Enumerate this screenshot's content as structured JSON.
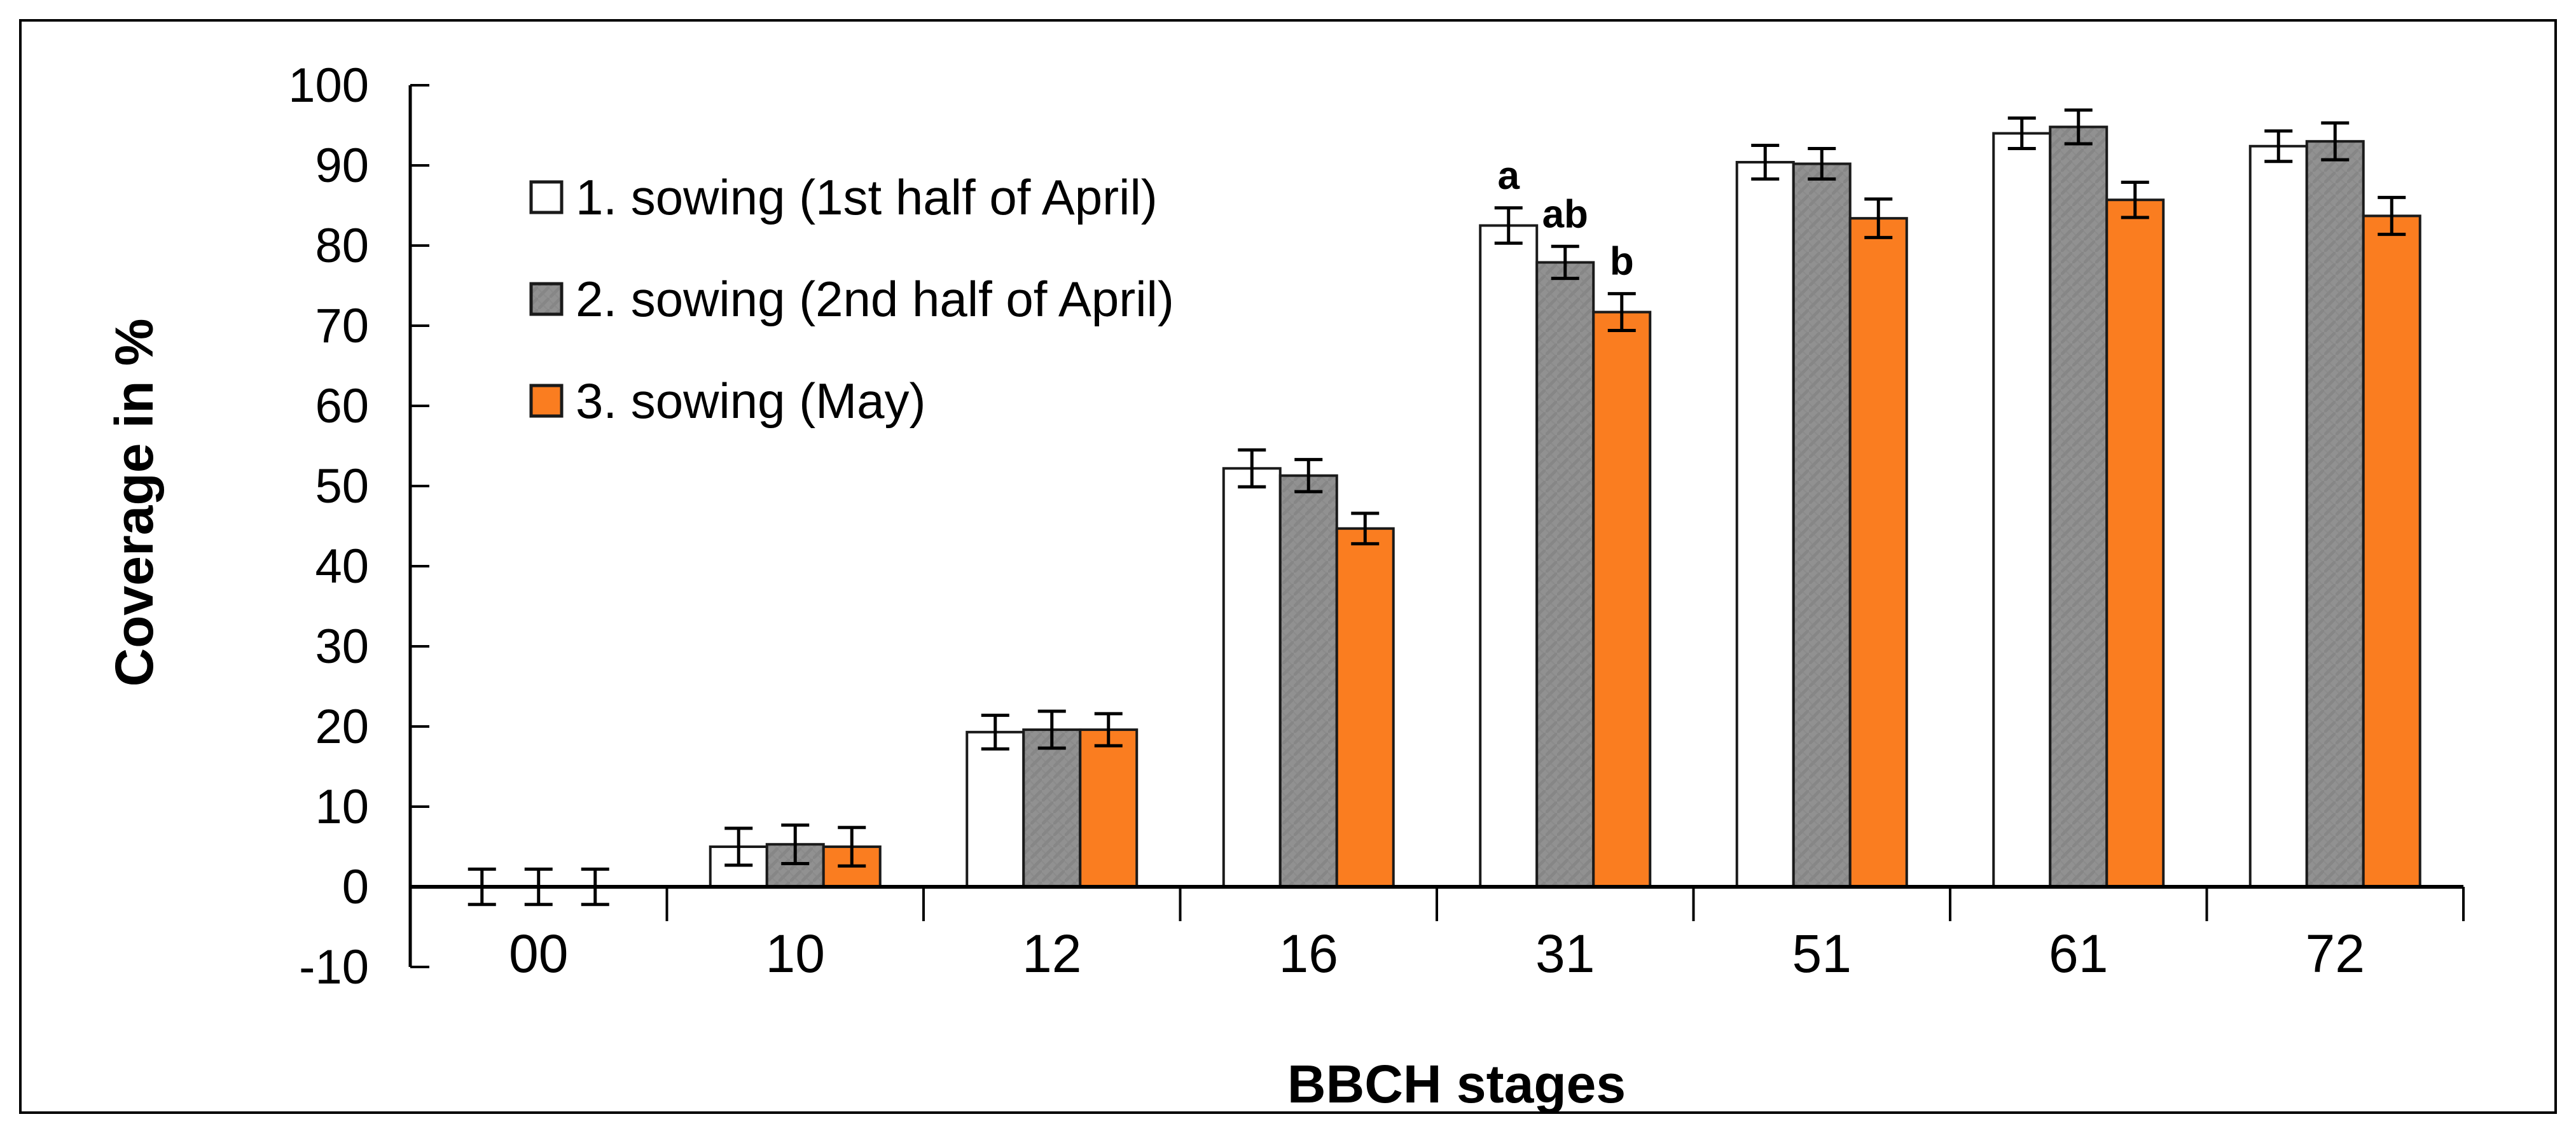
{
  "window": {
    "background": "#FFFFFF",
    "frame_border_color": "#000000"
  },
  "chart_data": {
    "type": "bar",
    "title": "",
    "xlabel": "BBCH stages",
    "ylabel": "Coverage in %",
    "categories": [
      "00",
      "10",
      "12",
      "16",
      "31",
      "51",
      "61",
      "72"
    ],
    "series": [
      {
        "name": "1. sowing (1st half of April)",
        "fill": "#FFFFFF",
        "pattern": false,
        "values": [
          0,
          5.0,
          19.3,
          52.2,
          82.5,
          90.4,
          94.0,
          92.4
        ],
        "errors": [
          2.2,
          2.3,
          2.1,
          2.3,
          2.2,
          2.1,
          1.9,
          1.9
        ]
      },
      {
        "name": "2. sowing (2nd half of April)",
        "fill": "#919191",
        "pattern": true,
        "pattern_color": "#868686",
        "values": [
          0,
          5.3,
          19.6,
          51.3,
          77.9,
          90.2,
          94.8,
          93.0
        ],
        "errors": [
          2.2,
          2.4,
          2.3,
          2.0,
          2.0,
          1.9,
          2.1,
          2.3
        ]
      },
      {
        "name": "3. sowing (May)",
        "fill": "#FA7D20",
        "pattern": false,
        "values": [
          0,
          5.0,
          19.6,
          44.7,
          71.7,
          83.4,
          85.7,
          83.7
        ],
        "errors": [
          2.2,
          2.4,
          2.0,
          1.9,
          2.3,
          2.4,
          2.2,
          2.3
        ]
      }
    ],
    "significance_labels": [
      {
        "category": "31",
        "series_index": 0,
        "text": "a"
      },
      {
        "category": "31",
        "series_index": 1,
        "text": "ab"
      },
      {
        "category": "31",
        "series_index": 2,
        "text": "b"
      }
    ],
    "ylim": [
      -10,
      100
    ],
    "ytick_step": 10,
    "yticks": [
      100,
      90,
      80,
      70,
      60,
      50,
      40,
      30,
      20,
      10,
      0,
      -10
    ],
    "grid": false,
    "legend_position": "upper-left-inside",
    "bar_border_color": "#1A1A1A",
    "error_bar_color": "#000000",
    "axis_color": "#000000",
    "text_color": "#000000"
  }
}
